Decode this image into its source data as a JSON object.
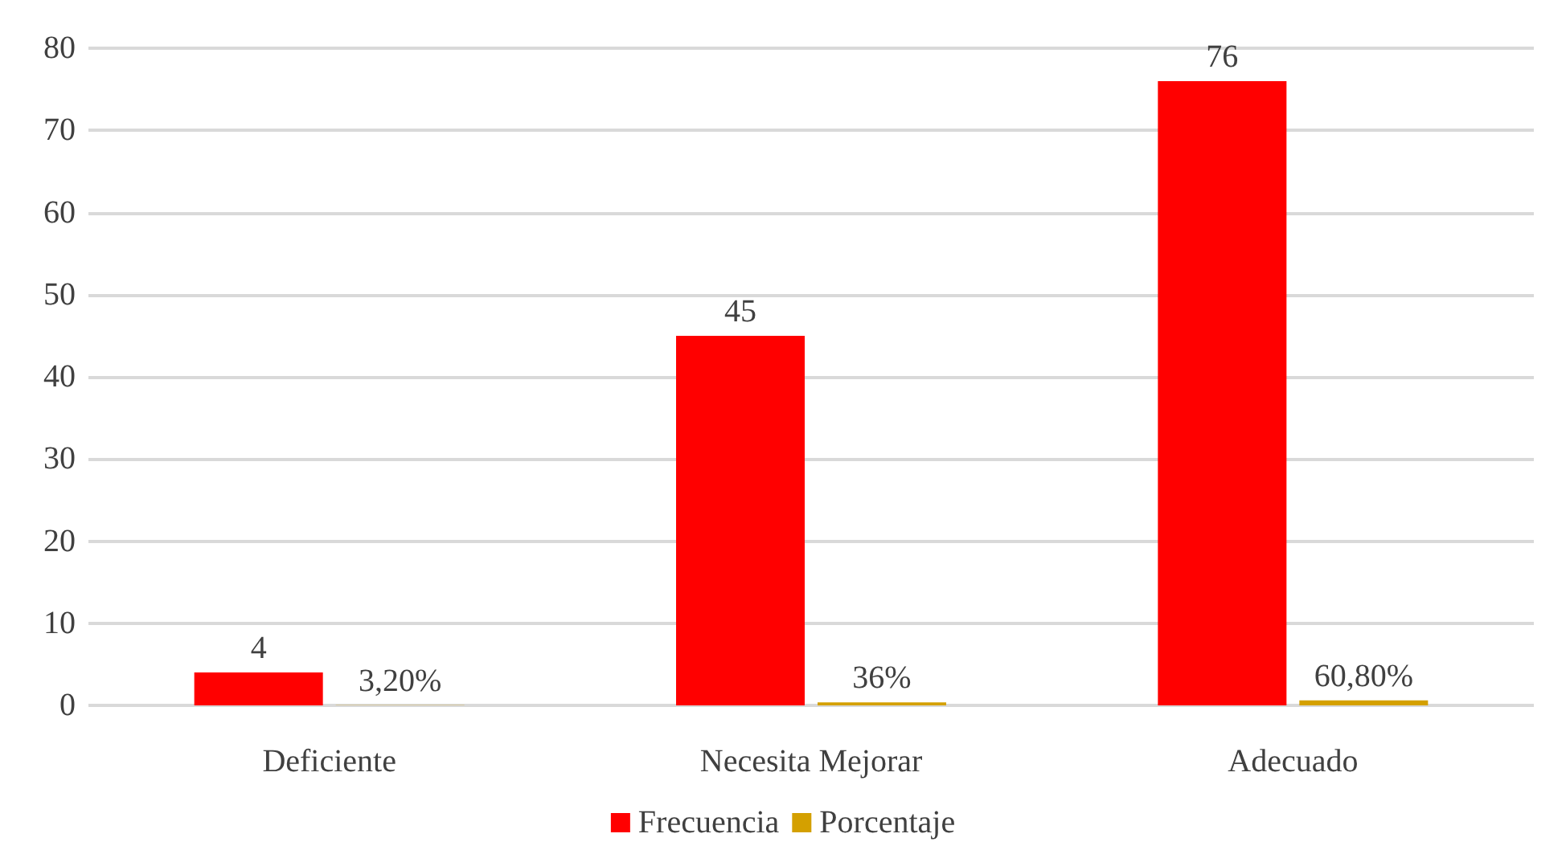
{
  "chart_data": {
    "type": "bar",
    "categories": [
      "Deficiente",
      "Necesita Mejorar",
      "Adecuado"
    ],
    "series": [
      {
        "name": "Frecuencia",
        "color": "#ff0000",
        "values": [
          4,
          45,
          76
        ],
        "value_labels": [
          "4",
          "45",
          "76"
        ]
      },
      {
        "name": "Porcentaje",
        "color": "#d4a000",
        "values": [
          0.032,
          0.36,
          0.608
        ],
        "value_labels": [
          "3,20%",
          "36%",
          "60,80%"
        ]
      }
    ],
    "ylim": [
      0,
      80
    ],
    "yticks": [
      0,
      10,
      20,
      30,
      40,
      50,
      60,
      70,
      80
    ],
    "grid": "y",
    "legend": "bottom"
  }
}
